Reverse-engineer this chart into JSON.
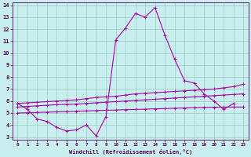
{
  "x": [
    0,
    1,
    2,
    3,
    4,
    5,
    6,
    7,
    8,
    9,
    10,
    11,
    12,
    13,
    14,
    15,
    16,
    17,
    18,
    19,
    20,
    21,
    22,
    23
  ],
  "line_main": [
    5.8,
    5.3,
    4.5,
    4.3,
    3.8,
    3.5,
    3.6,
    4.0,
    3.1,
    4.7,
    11.1,
    12.1,
    13.3,
    13.0,
    13.8,
    11.5,
    9.5,
    7.7,
    7.5,
    6.6,
    6.0,
    5.3,
    5.8,
    null
  ],
  "line2": [
    5.8,
    5.85,
    5.9,
    5.95,
    6.0,
    6.05,
    6.1,
    6.2,
    6.3,
    6.35,
    6.4,
    6.5,
    6.6,
    6.65,
    6.7,
    6.75,
    6.8,
    6.85,
    6.9,
    6.95,
    7.0,
    7.1,
    7.2,
    7.4
  ],
  "line3": [
    5.5,
    5.55,
    5.6,
    5.65,
    5.7,
    5.72,
    5.75,
    5.8,
    5.85,
    5.9,
    5.95,
    6.0,
    6.05,
    6.1,
    6.15,
    6.2,
    6.25,
    6.3,
    6.35,
    6.4,
    6.45,
    6.5,
    6.55,
    6.6
  ],
  "line4": [
    5.0,
    5.02,
    5.05,
    5.07,
    5.1,
    5.12,
    5.15,
    5.18,
    5.2,
    5.23,
    5.25,
    5.28,
    5.3,
    5.32,
    5.35,
    5.37,
    5.4,
    5.42,
    5.45,
    5.47,
    5.48,
    5.49,
    5.5,
    5.5
  ],
  "bg_color": "#c8eef0",
  "line_color": "#aa00aa",
  "grid_color": "#99ccbb",
  "xlabel": "Windchill (Refroidissement éolien,°C)",
  "ylim": [
    3,
    14
  ],
  "xlim": [
    0,
    23
  ],
  "yticks": [
    3,
    4,
    5,
    6,
    7,
    8,
    9,
    10,
    11,
    12,
    13,
    14
  ],
  "xticks": [
    0,
    1,
    2,
    3,
    4,
    5,
    6,
    7,
    8,
    9,
    10,
    11,
    12,
    13,
    14,
    15,
    16,
    17,
    18,
    19,
    20,
    21,
    22,
    23
  ]
}
